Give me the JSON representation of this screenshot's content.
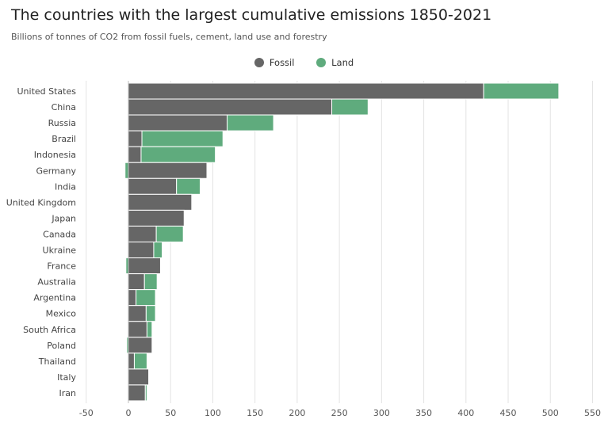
{
  "chart_data": {
    "type": "bar",
    "orientation": "horizontal",
    "stacked": true,
    "title": "The countries with the largest cumulative emissions 1850-2021",
    "subtitle": "Billions of tonnes of CO2 from fossil fuels, cement, land use and forestry",
    "categories": [
      "United States",
      "China",
      "Russia",
      "Brazil",
      "Indonesia",
      "Germany",
      "India",
      "United Kingdom",
      "Japan",
      "Canada",
      "Ukraine",
      "France",
      "Australia",
      "Argentina",
      "Mexico",
      "South Africa",
      "Poland",
      "Thailand",
      "Italy",
      "Iran"
    ],
    "series": [
      {
        "name": "Fossil",
        "color": "#666666",
        "values": [
          421,
          241,
          117,
          16,
          15,
          93,
          57,
          75,
          66,
          33,
          30,
          38,
          19,
          9,
          21,
          22,
          28,
          7,
          24,
          20
        ]
      },
      {
        "name": "Land",
        "color": "#5fab7d",
        "values": [
          89,
          43,
          55,
          96,
          88,
          -4,
          28,
          0,
          0,
          32,
          10,
          -3,
          15,
          23,
          11,
          6,
          -2,
          15,
          0,
          2
        ]
      }
    ],
    "xlim": [
      -50,
      550
    ],
    "xticks": [
      "-50",
      "0",
      "50",
      "100",
      "150",
      "200",
      "250",
      "300",
      "350",
      "400",
      "450",
      "500",
      "550"
    ],
    "grid": true,
    "legend": "top-center"
  }
}
